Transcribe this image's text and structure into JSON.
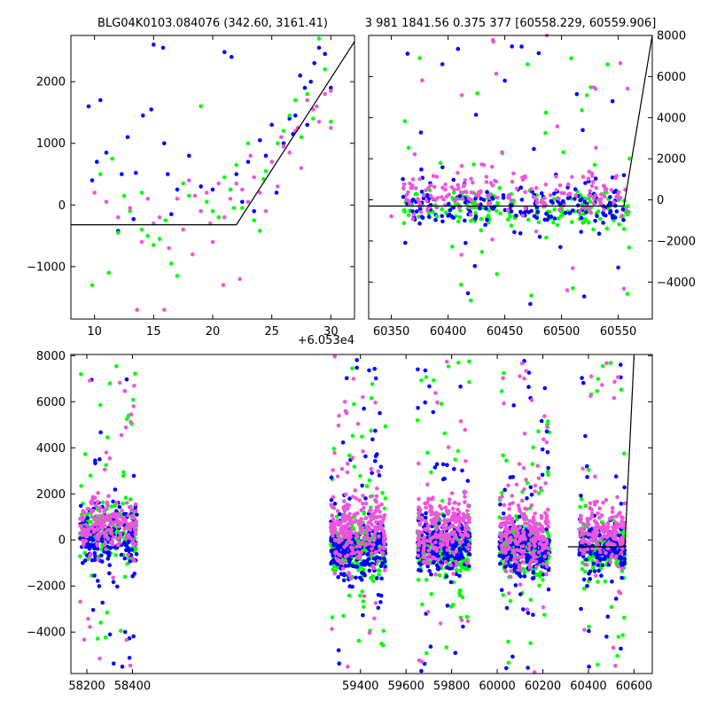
{
  "colors": {
    "green": "#00ff00",
    "blue": "#0000ff",
    "pink": "#ee55dd",
    "line": "#000000"
  },
  "chart_data": [
    {
      "type": "scatter",
      "title": "BLG04K0103.084076 (342.60, 3161.41)",
      "offset_label": "+6.053e4",
      "xlim": [
        8,
        32
      ],
      "ylim": [
        -1850,
        2750
      ],
      "x_ticks": [
        {
          "v": 10,
          "label": "10"
        },
        {
          "v": 15,
          "label": "15"
        },
        {
          "v": 20,
          "label": "20"
        },
        {
          "v": 25,
          "label": "25"
        },
        {
          "v": 30,
          "label": "30"
        }
      ],
      "y_ticks": [
        {
          "v": -1000,
          "label": "−1000"
        },
        {
          "v": 0,
          "label": "0"
        },
        {
          "v": 1000,
          "label": "1000"
        },
        {
          "v": 2000,
          "label": "2000"
        }
      ],
      "y_tick_side": "left",
      "model_line": [
        [
          8,
          -320
        ],
        [
          22,
          -320
        ],
        [
          32,
          2650
        ]
      ],
      "series": [
        {
          "color": "blue",
          "points": [
            [
              9.5,
              1600
            ],
            [
              10.5,
              1700
            ],
            [
              9.8,
              400
            ],
            [
              10.2,
              700
            ],
            [
              11,
              850
            ],
            [
              12.3,
              500
            ],
            [
              12.8,
              1100
            ],
            [
              13.5,
              520
            ],
            [
              14.1,
              1450
            ],
            [
              14.8,
              1550
            ],
            [
              15,
              2600
            ],
            [
              15.8,
              2550
            ],
            [
              15.9,
              1000
            ],
            [
              16.2,
              500
            ],
            [
              17,
              250
            ],
            [
              18,
              800
            ],
            [
              19,
              300
            ],
            [
              20,
              250
            ],
            [
              21,
              2480
            ],
            [
              21.6,
              2400
            ],
            [
              22,
              500
            ],
            [
              22.5,
              50
            ],
            [
              23,
              700
            ],
            [
              24,
              1050
            ],
            [
              24.5,
              800
            ],
            [
              25,
              1300
            ],
            [
              25.4,
              200
            ],
            [
              26,
              1000
            ],
            [
              26.5,
              1400
            ],
            [
              27,
              1450
            ],
            [
              27.4,
              2100
            ],
            [
              27.8,
              1900
            ],
            [
              28,
              1300
            ],
            [
              28.3,
              2000
            ],
            [
              28.6,
              2300
            ],
            [
              29,
              2550
            ],
            [
              29.5,
              2450
            ],
            [
              30,
              1900
            ],
            [
              12,
              -420
            ],
            [
              13.3,
              -230
            ],
            [
              16.5,
              -150
            ],
            [
              23.5,
              -100
            ],
            [
              26.8,
              1150
            ]
          ]
        },
        {
          "color": "green",
          "points": [
            [
              9.8,
              -1300
            ],
            [
              10.5,
              500
            ],
            [
              11.2,
              -1100
            ],
            [
              11.5,
              750
            ],
            [
              12,
              -450
            ],
            [
              12.5,
              150
            ],
            [
              13,
              -100
            ],
            [
              14,
              -400
            ],
            [
              14.5,
              -500
            ],
            [
              15,
              -650
            ],
            [
              15.5,
              -550
            ],
            [
              16,
              -250
            ],
            [
              16.5,
              -950
            ],
            [
              17,
              -1150
            ],
            [
              18,
              150
            ],
            [
              19,
              1600
            ],
            [
              19.5,
              50
            ],
            [
              20,
              -100
            ],
            [
              20.5,
              -200
            ],
            [
              21,
              450
            ],
            [
              21.5,
              250
            ],
            [
              22,
              650
            ],
            [
              22.5,
              -50
            ],
            [
              23,
              1000
            ],
            [
              23.5,
              -250
            ],
            [
              24,
              -420
            ],
            [
              24.5,
              550
            ],
            [
              25,
              700
            ],
            [
              25.5,
              1000
            ],
            [
              26,
              1200
            ],
            [
              26.5,
              1450
            ],
            [
              27,
              1700
            ],
            [
              27.5,
              1100
            ],
            [
              28,
              1800
            ],
            [
              28.5,
              1400
            ],
            [
              29,
              2700
            ],
            [
              29.5,
              2200
            ],
            [
              30,
              1350
            ],
            [
              14,
              200
            ],
            [
              17.5,
              350
            ],
            [
              21.8,
              -50
            ],
            [
              24.3,
              420
            ]
          ]
        },
        {
          "color": "pink",
          "points": [
            [
              10,
              200
            ],
            [
              11,
              50
            ],
            [
              12,
              -200
            ],
            [
              13,
              -50
            ],
            [
              13.6,
              -1700
            ],
            [
              14,
              -600
            ],
            [
              14.5,
              100
            ],
            [
              15,
              -300
            ],
            [
              15.5,
              -200
            ],
            [
              15.9,
              -1700
            ],
            [
              16.3,
              -700
            ],
            [
              17,
              100
            ],
            [
              17.5,
              -400
            ],
            [
              18,
              400
            ],
            [
              18.5,
              150
            ],
            [
              19,
              -100
            ],
            [
              19.5,
              200
            ],
            [
              20,
              -600
            ],
            [
              20.5,
              350
            ],
            [
              20.9,
              -1300
            ],
            [
              21,
              -200
            ],
            [
              21.5,
              100
            ],
            [
              22,
              350
            ],
            [
              22.3,
              -1200
            ],
            [
              22.5,
              250
            ],
            [
              23,
              50
            ],
            [
              23.5,
              450
            ],
            [
              24,
              200
            ],
            [
              24.5,
              -100
            ],
            [
              25,
              700
            ],
            [
              25.5,
              300
            ],
            [
              26,
              950
            ],
            [
              26.5,
              850
            ],
            [
              27,
              1200
            ],
            [
              27.5,
              600
            ],
            [
              28,
              1700
            ],
            [
              28.5,
              1550
            ],
            [
              29,
              1350
            ],
            [
              29.5,
              1800
            ],
            [
              30,
              1850
            ],
            [
              30,
              1250
            ],
            [
              18.3,
              -800
            ],
            [
              19.8,
              -300
            ],
            [
              23.2,
              800
            ],
            [
              25.8,
              1100
            ],
            [
              27.2,
              1250
            ],
            [
              28.8,
              1600
            ]
          ]
        }
      ]
    },
    {
      "type": "scatter",
      "title": "3 981 1841.56 0.375 377 [60558.229, 60559.906]",
      "xlim": [
        60330,
        60580
      ],
      "ylim": [
        -5800,
        8000
      ],
      "x_ticks": [
        {
          "v": 60350,
          "label": "60350"
        },
        {
          "v": 60400,
          "label": "60400"
        },
        {
          "v": 60450,
          "label": "60450"
        },
        {
          "v": 60500,
          "label": "60500"
        },
        {
          "v": 60550,
          "label": "60550"
        }
      ],
      "y_ticks": [
        {
          "v": -4000,
          "label": "−4000"
        },
        {
          "v": -2000,
          "label": "−2000"
        },
        {
          "v": 0,
          "label": "0"
        },
        {
          "v": 2000,
          "label": "2000"
        },
        {
          "v": 4000,
          "label": "4000"
        },
        {
          "v": 6000,
          "label": "6000"
        },
        {
          "v": 8000,
          "label": "8000"
        }
      ],
      "y_tick_side": "right",
      "model_line": [
        [
          60330,
          -300
        ],
        [
          60555,
          -300
        ],
        [
          60580,
          8000
        ]
      ],
      "clusters": [
        {
          "x_start": 60360,
          "x_end": 60560,
          "n_core": 520,
          "core_center": [
            -400,
            -350,
            300
          ],
          "core_spread": [
            450,
            500,
            800
          ],
          "n_tail": 70,
          "tail_range": [
            -5500,
            7800
          ]
        }
      ],
      "highlights": [
        {
          "color": "green",
          "points": [
            [
              60375,
              6900
            ],
            [
              60390,
              -800
            ],
            [
              60470,
              6600
            ],
            [
              60510,
              -4300
            ],
            [
              60420,
              -4900
            ],
            [
              60560,
              2000
            ]
          ]
        },
        {
          "color": "blue",
          "points": [
            [
              60395,
              6600
            ],
            [
              60450,
              5800
            ],
            [
              60545,
              4800
            ],
            [
              60520,
              -4700
            ],
            [
              60555,
              1200
            ]
          ]
        },
        {
          "color": "pink",
          "points": [
            [
              60487,
              8000
            ],
            [
              60440,
              7700
            ],
            [
              60530,
              5400
            ],
            [
              60350,
              -800
            ],
            [
              60505,
              -4400
            ]
          ]
        }
      ]
    },
    {
      "type": "scatter",
      "title": "",
      "xlim": [
        58130,
        60680
      ],
      "ylim": [
        -5800,
        8050
      ],
      "x_ticks": [
        {
          "v": 58200,
          "label": "58200"
        },
        {
          "v": 58400,
          "label": "58400"
        },
        {
          "v": 59400,
          "label": "59400"
        },
        {
          "v": 59600,
          "label": "59600"
        },
        {
          "v": 59800,
          "label": "59800"
        },
        {
          "v": 60000,
          "label": "60000"
        },
        {
          "v": 60200,
          "label": "60200"
        },
        {
          "v": 60400,
          "label": "60400"
        },
        {
          "v": 60600,
          "label": "60600"
        }
      ],
      "y_ticks": [
        {
          "v": -4000,
          "label": "−4000"
        },
        {
          "v": -2000,
          "label": "−2000"
        },
        {
          "v": 0,
          "label": "0"
        },
        {
          "v": 2000,
          "label": "2000"
        },
        {
          "v": 4000,
          "label": "4000"
        },
        {
          "v": 6000,
          "label": "6000"
        },
        {
          "v": 8000,
          "label": "8000"
        }
      ],
      "y_tick_side": "left",
      "axis_break_x": 58440,
      "model_line": [
        [
          60310,
          -300
        ],
        [
          60560,
          -300
        ],
        [
          60600,
          8000
        ]
      ],
      "clusters": [
        {
          "x_start": 58170,
          "x_end": 58420,
          "n_core": 520,
          "core_center": [
            300,
            200,
            600
          ],
          "core_spread": [
            600,
            600,
            900
          ],
          "n_tail": 80,
          "tail_range": [
            -5800,
            7900
          ]
        },
        {
          "x_start": 59270,
          "x_end": 59510,
          "n_core": 650,
          "core_center": [
            -350,
            -300,
            400
          ],
          "core_spread": [
            550,
            550,
            1000
          ],
          "n_tail": 110,
          "tail_range": [
            -5700,
            8000
          ]
        },
        {
          "x_start": 59650,
          "x_end": 59880,
          "n_core": 620,
          "core_center": [
            -350,
            -300,
            400
          ],
          "core_spread": [
            550,
            550,
            1000
          ],
          "n_tail": 100,
          "tail_range": [
            -5800,
            8000
          ]
        },
        {
          "x_start": 60010,
          "x_end": 60230,
          "n_core": 620,
          "core_center": [
            -400,
            -350,
            300
          ],
          "core_spread": [
            550,
            550,
            1000
          ],
          "n_tail": 100,
          "tail_range": [
            -5800,
            8000
          ]
        },
        {
          "x_start": 60360,
          "x_end": 60560,
          "n_core": 460,
          "core_center": [
            -400,
            -350,
            300
          ],
          "core_spread": [
            450,
            500,
            800
          ],
          "n_tail": 70,
          "tail_range": [
            -5500,
            7900
          ]
        }
      ]
    }
  ]
}
